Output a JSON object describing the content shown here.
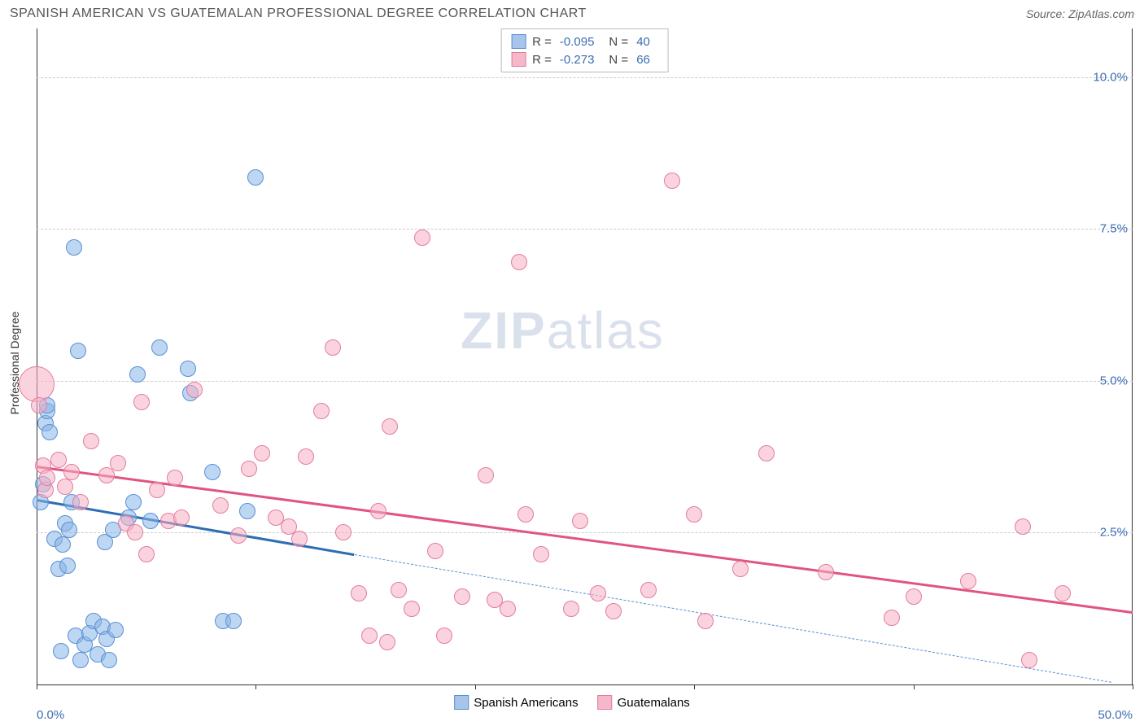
{
  "header": {
    "title": "SPANISH AMERICAN VS GUATEMALAN PROFESSIONAL DEGREE CORRELATION CHART",
    "source_prefix": "Source: ",
    "source_name": "ZipAtlas.com"
  },
  "watermark": {
    "zip": "ZIP",
    "atlas": "atlas"
  },
  "chart": {
    "type": "scatter",
    "background_color": "#ffffff",
    "grid_color": "#cccccc",
    "axis_color": "#333333",
    "xlim": [
      0,
      50
    ],
    "ylim": [
      0,
      10.8
    ],
    "y_ticks": [
      2.5,
      5.0,
      7.5,
      10.0
    ],
    "y_tick_labels": [
      "2.5%",
      "5.0%",
      "7.5%",
      "10.0%"
    ],
    "x_ticks": [
      0,
      10,
      20,
      30,
      40,
      50
    ],
    "x_tick_labels": {
      "0": "0.0%",
      "50": "50.0%"
    },
    "y_label": "Professional Degree",
    "y_label_color": "#333333",
    "y_tick_label_color": "#3b6db3",
    "x_tick_label_color": "#3b6db3",
    "label_fontsize": 14,
    "tick_fontsize": 15
  },
  "legend_top": {
    "rows": [
      {
        "swatch_fill": "#a7c5ea",
        "swatch_border": "#5a8fd6",
        "r_label": "R =",
        "r_value": "-0.095",
        "n_label": "N =",
        "n_value": "40"
      },
      {
        "swatch_fill": "#f5b8c9",
        "swatch_border": "#e37ca0",
        "r_label": "R =",
        "r_value": "-0.273",
        "n_label": "N =",
        "n_value": "66"
      }
    ]
  },
  "legend_bottom": {
    "items": [
      {
        "swatch_fill": "#a7c5ea",
        "swatch_border": "#5a8fd6",
        "label": "Spanish Americans"
      },
      {
        "swatch_fill": "#f5b8c9",
        "swatch_border": "#e37ca0",
        "label": "Guatemalans"
      }
    ]
  },
  "series": [
    {
      "name": "spanish_americans",
      "fill_color": "rgba(135, 180, 230, 0.55)",
      "stroke_color": "#5a8fd6",
      "marker_radius": 10,
      "trend": {
        "x1": 0,
        "y1": 3.05,
        "x2": 14.5,
        "y2": 2.15,
        "color": "#2d6db3",
        "width": 2.5
      },
      "trend_ext": {
        "x1": 14.5,
        "y1": 2.15,
        "x2": 49,
        "y2": 0.05,
        "color": "#5a8fd6",
        "width": 1.5
      },
      "points": [
        [
          0.2,
          3.0,
          10
        ],
        [
          0.3,
          3.3,
          10
        ],
        [
          0.4,
          4.3,
          10
        ],
        [
          0.5,
          4.5,
          10
        ],
        [
          0.5,
          4.6,
          10
        ],
        [
          0.6,
          4.15,
          10
        ],
        [
          0.8,
          2.4,
          10
        ],
        [
          1.0,
          1.9,
          10
        ],
        [
          1.1,
          0.55,
          10
        ],
        [
          1.2,
          2.3,
          10
        ],
        [
          1.3,
          2.65,
          10
        ],
        [
          1.4,
          1.95,
          10
        ],
        [
          1.5,
          2.55,
          10
        ],
        [
          1.6,
          3.0,
          10
        ],
        [
          1.7,
          7.2,
          10
        ],
        [
          1.8,
          0.8,
          10
        ],
        [
          1.9,
          5.5,
          10
        ],
        [
          2.0,
          0.4,
          10
        ],
        [
          2.2,
          0.65,
          10
        ],
        [
          2.4,
          0.85,
          10
        ],
        [
          2.6,
          1.05,
          10
        ],
        [
          2.8,
          0.5,
          10
        ],
        [
          3.0,
          0.95,
          10
        ],
        [
          3.1,
          2.35,
          10
        ],
        [
          3.2,
          0.75,
          10
        ],
        [
          3.3,
          0.4,
          10
        ],
        [
          3.5,
          2.55,
          10
        ],
        [
          3.6,
          0.9,
          10
        ],
        [
          4.2,
          2.75,
          10
        ],
        [
          4.4,
          3.0,
          10
        ],
        [
          4.6,
          5.1,
          10
        ],
        [
          5.2,
          2.7,
          10
        ],
        [
          5.6,
          5.55,
          10
        ],
        [
          6.9,
          5.2,
          10
        ],
        [
          7.0,
          4.8,
          10
        ],
        [
          8.0,
          3.5,
          10
        ],
        [
          8.5,
          1.05,
          10
        ],
        [
          9.0,
          1.05,
          10
        ],
        [
          9.6,
          2.85,
          10
        ],
        [
          10.0,
          8.35,
          10
        ]
      ]
    },
    {
      "name": "guatemalans",
      "fill_color": "rgba(245, 175, 195, 0.55)",
      "stroke_color": "#e37ca0",
      "marker_radius": 10,
      "trend": {
        "x1": 0,
        "y1": 3.6,
        "x2": 50,
        "y2": 1.2,
        "color": "#e05580",
        "width": 2.5
      },
      "points": [
        [
          0.0,
          4.95,
          22
        ],
        [
          0.1,
          4.6,
          10
        ],
        [
          0.3,
          3.6,
          10
        ],
        [
          0.4,
          3.2,
          10
        ],
        [
          0.5,
          3.4,
          10
        ],
        [
          1.0,
          3.7,
          10
        ],
        [
          1.3,
          3.25,
          10
        ],
        [
          1.6,
          3.5,
          10
        ],
        [
          2.0,
          3.0,
          10
        ],
        [
          2.5,
          4.0,
          10
        ],
        [
          3.2,
          3.45,
          10
        ],
        [
          3.7,
          3.65,
          10
        ],
        [
          4.1,
          2.65,
          10
        ],
        [
          4.5,
          2.5,
          10
        ],
        [
          4.8,
          4.65,
          10
        ],
        [
          5.0,
          2.15,
          10
        ],
        [
          5.5,
          3.2,
          10
        ],
        [
          6.0,
          2.7,
          10
        ],
        [
          6.3,
          3.4,
          10
        ],
        [
          6.6,
          2.75,
          10
        ],
        [
          7.2,
          4.85,
          10
        ],
        [
          8.4,
          2.95,
          10
        ],
        [
          9.2,
          2.45,
          10
        ],
        [
          9.7,
          3.55,
          10
        ],
        [
          10.3,
          3.8,
          10
        ],
        [
          10.9,
          2.75,
          10
        ],
        [
          11.5,
          2.6,
          10
        ],
        [
          12.0,
          2.4,
          10
        ],
        [
          12.3,
          3.75,
          10
        ],
        [
          13.0,
          4.5,
          10
        ],
        [
          13.5,
          5.55,
          10
        ],
        [
          14.0,
          2.5,
          10
        ],
        [
          14.7,
          1.5,
          10
        ],
        [
          15.2,
          0.8,
          10
        ],
        [
          15.6,
          2.85,
          10
        ],
        [
          16.0,
          0.7,
          10
        ],
        [
          16.1,
          4.25,
          10
        ],
        [
          16.5,
          1.55,
          10
        ],
        [
          17.1,
          1.25,
          10
        ],
        [
          17.6,
          7.35,
          10
        ],
        [
          18.2,
          2.2,
          10
        ],
        [
          18.6,
          0.8,
          10
        ],
        [
          19.4,
          1.45,
          10
        ],
        [
          20.5,
          3.45,
          10
        ],
        [
          20.9,
          1.4,
          10
        ],
        [
          21.5,
          1.25,
          10
        ],
        [
          22.0,
          6.95,
          10
        ],
        [
          22.3,
          2.8,
          10
        ],
        [
          23.0,
          2.15,
          10
        ],
        [
          24.4,
          1.25,
          10
        ],
        [
          24.8,
          2.7,
          10
        ],
        [
          25.6,
          1.5,
          10
        ],
        [
          26.3,
          1.2,
          10
        ],
        [
          27.9,
          1.55,
          10
        ],
        [
          29.0,
          8.3,
          10
        ],
        [
          30.0,
          2.8,
          10
        ],
        [
          30.5,
          1.05,
          10
        ],
        [
          32.1,
          1.9,
          10
        ],
        [
          33.3,
          3.8,
          10
        ],
        [
          36.0,
          1.85,
          10
        ],
        [
          39.0,
          1.1,
          10
        ],
        [
          40.0,
          1.45,
          10
        ],
        [
          42.5,
          1.7,
          10
        ],
        [
          45.0,
          2.6,
          10
        ],
        [
          45.3,
          0.4,
          10
        ],
        [
          46.8,
          1.5,
          10
        ]
      ]
    }
  ]
}
